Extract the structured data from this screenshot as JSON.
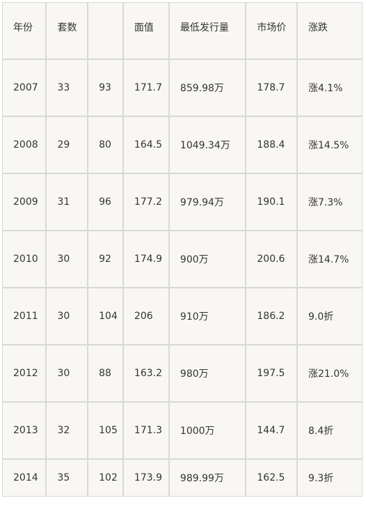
{
  "table": {
    "headers": [
      "年份",
      "套数",
      "",
      "面值",
      "最低发行量",
      "市场价",
      "涨跌"
    ],
    "rows": [
      [
        "2007",
        "33",
        "93",
        "171.7",
        "859.98万",
        "178.7",
        "涨4.1%"
      ],
      [
        "2008",
        "29",
        "80",
        "164.5",
        "1049.34万",
        "188.4",
        "涨14.5%"
      ],
      [
        "2009",
        "31",
        "96",
        "177.2",
        "979.94万",
        "190.1",
        "涨7.3%"
      ],
      [
        "2010",
        "30",
        "92",
        "174.9",
        "900万",
        "200.6",
        "涨14.7%"
      ],
      [
        "2011",
        "30",
        "104",
        "206",
        "910万",
        "186.2",
        "9.0折"
      ],
      [
        "2012",
        "30",
        "88",
        "163.2",
        "980万",
        "197.5",
        "涨21.0%"
      ],
      [
        "2013",
        "32",
        "105",
        "171.3",
        "1000万",
        "144.7",
        "8.4折"
      ],
      [
        "2014",
        "35",
        "102",
        "173.9",
        "989.99万",
        "162.5",
        "9.3折"
      ]
    ]
  },
  "colors": {
    "cell_background": "#f8f7f4",
    "border": "#d8d8d8",
    "text": "#333333"
  }
}
